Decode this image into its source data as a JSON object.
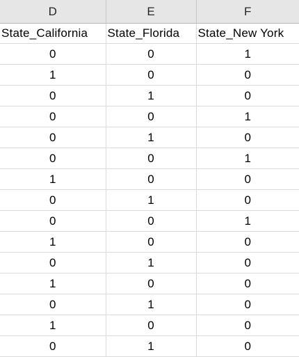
{
  "sheet": {
    "column_letters": [
      "D",
      "E",
      "F"
    ],
    "headers": [
      "State_California",
      "State_Florida",
      "State_New York"
    ],
    "rows": [
      [
        "0",
        "0",
        "1"
      ],
      [
        "1",
        "0",
        "0"
      ],
      [
        "0",
        "1",
        "0"
      ],
      [
        "0",
        "0",
        "1"
      ],
      [
        "0",
        "1",
        "0"
      ],
      [
        "0",
        "0",
        "1"
      ],
      [
        "1",
        "0",
        "0"
      ],
      [
        "0",
        "1",
        "0"
      ],
      [
        "0",
        "0",
        "1"
      ],
      [
        "1",
        "0",
        "0"
      ],
      [
        "0",
        "1",
        "0"
      ],
      [
        "1",
        "0",
        "0"
      ],
      [
        "0",
        "1",
        "0"
      ],
      [
        "1",
        "0",
        "0"
      ],
      [
        "0",
        "1",
        "0"
      ]
    ]
  }
}
